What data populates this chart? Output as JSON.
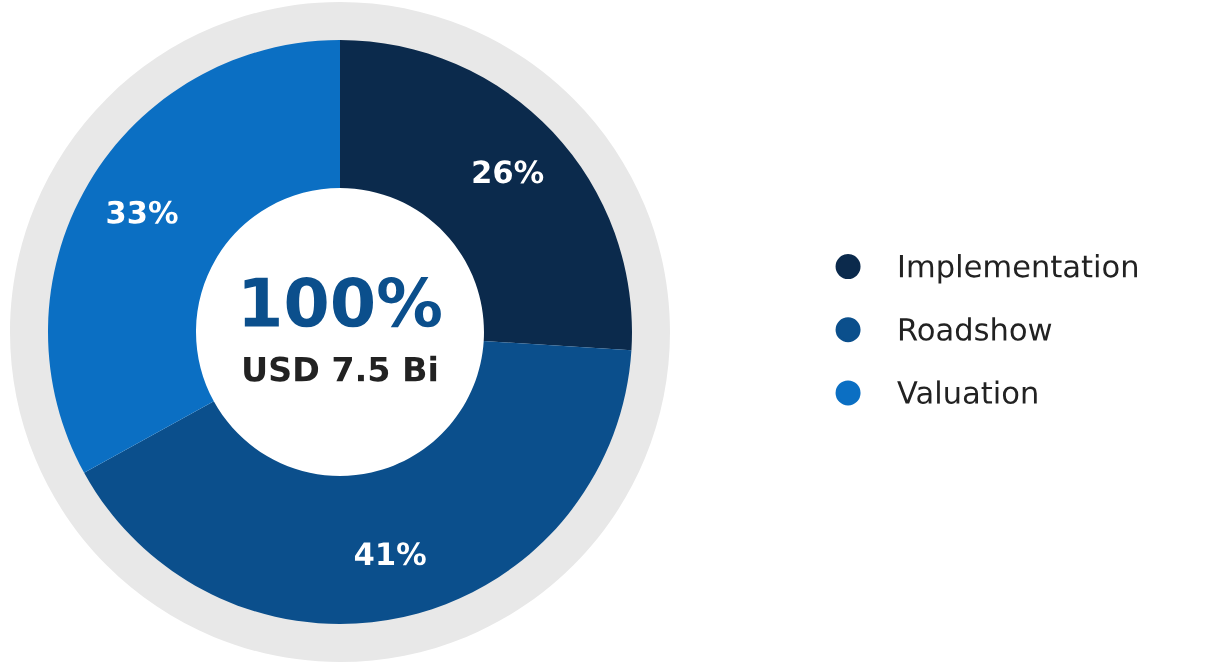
{
  "chart_data": {
    "type": "donut",
    "categories": [
      "Implementation",
      "Roadshow",
      "Valuation"
    ],
    "values": [
      26,
      41,
      33
    ],
    "colors": [
      "#0b2a4c",
      "#0b4f8c",
      "#0b6fc3"
    ],
    "value_labels": [
      "26%",
      "41%",
      "33%"
    ],
    "annotations": [
      "100%",
      "USD 7.5 Bi"
    ],
    "legend": "right"
  }
}
